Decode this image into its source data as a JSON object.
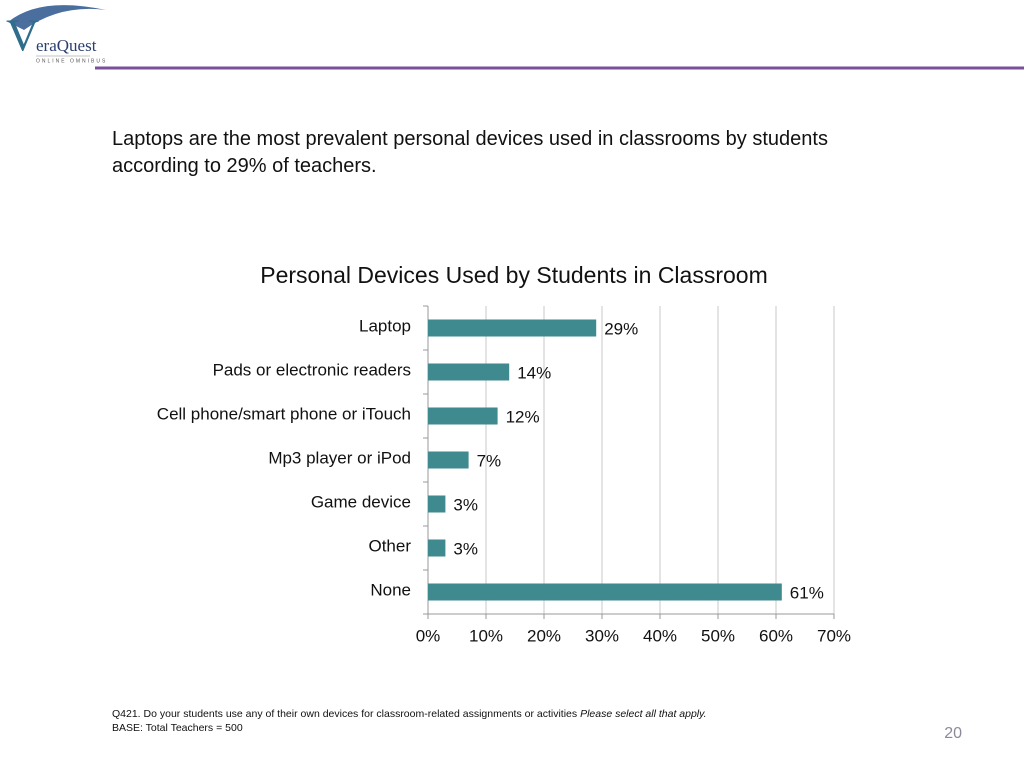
{
  "logo": {
    "letter": "V",
    "name": "eraQuest",
    "tagline": "ONLINE OMNIBUS"
  },
  "headline": "Laptops are the most prevalent personal devices used in classrooms by students according to 29% of teachers.",
  "chart_data": {
    "type": "hbar",
    "title": "Personal Devices Used by Students in Classroom",
    "categories": [
      "Laptop",
      "Pads or electronic readers",
      "Cell phone/smart phone or iTouch",
      "Mp3 player or iPod",
      "Game device",
      "Other",
      "None"
    ],
    "values": [
      29,
      14,
      12,
      7,
      3,
      3,
      61
    ],
    "value_labels": [
      "29%",
      "14%",
      "12%",
      "7%",
      "3%",
      "3%",
      "61%"
    ],
    "color": "#3f8a8f",
    "xlim": [
      0,
      70
    ],
    "xticks": [
      {
        "value": 0,
        "label": "0%"
      },
      {
        "value": 10,
        "label": "10%"
      },
      {
        "value": 20,
        "label": "20%"
      },
      {
        "value": 30,
        "label": "30%"
      },
      {
        "value": 40,
        "label": "40%"
      },
      {
        "value": 50,
        "label": "50%"
      },
      {
        "value": 60,
        "label": "60%"
      },
      {
        "value": 70,
        "label": "70%"
      }
    ],
    "grid": true
  },
  "footnote": {
    "question": "Q421. Do your students use any of their own devices for classroom-related assignments or activities",
    "instruction": "Please select all that apply.",
    "base": "BASE: Total Teachers =  500"
  },
  "page_number": "20"
}
